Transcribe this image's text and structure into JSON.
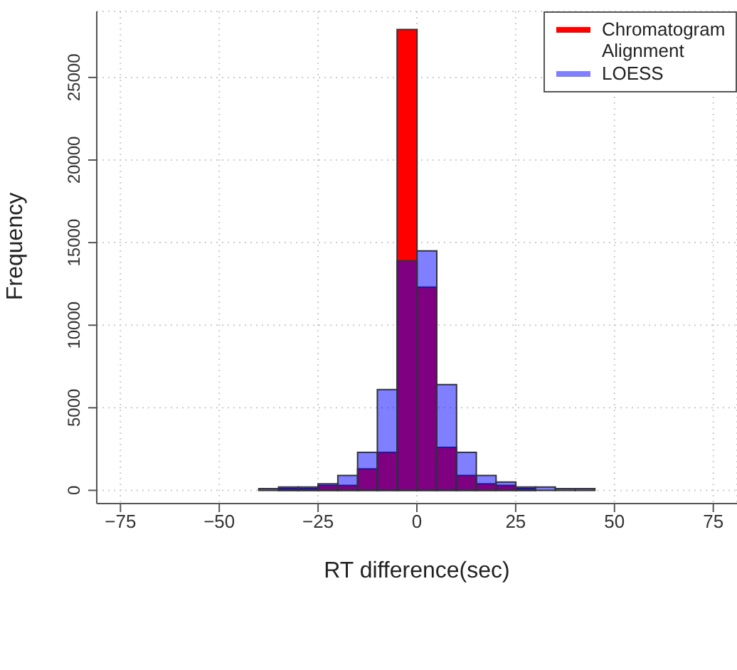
{
  "chart_data": {
    "type": "histogram",
    "xlabel": "RT difference(sec)",
    "ylabel": "Frequency",
    "bins": [
      -80,
      -75,
      -70,
      -65,
      -60,
      -55,
      -50,
      -45,
      -40,
      -35,
      -30,
      -25,
      -20,
      -15,
      -10,
      -5,
      0,
      5,
      10,
      15,
      20,
      25,
      30,
      35,
      40,
      45,
      50,
      55,
      60,
      65,
      70,
      75,
      80
    ],
    "series": [
      {
        "name": "Chromatogram Alignment",
        "color": "#ff0000",
        "values": [
          0,
          0,
          0,
          0,
          0,
          0,
          0,
          0,
          0,
          100,
          100,
          300,
          300,
          1300,
          2300,
          27900,
          12300,
          2600,
          900,
          400,
          300,
          100,
          0,
          0,
          0,
          0,
          0,
          0,
          0,
          0,
          0,
          0
        ]
      },
      {
        "name": "LOESS",
        "color": "#7f7fff",
        "values": [
          0,
          0,
          0,
          0,
          0,
          0,
          0,
          0,
          100,
          200,
          200,
          400,
          900,
          2300,
          6100,
          13900,
          14500,
          6400,
          2300,
          900,
          500,
          200,
          200,
          100,
          100,
          0,
          0,
          0,
          0,
          0,
          0,
          0
        ]
      }
    ],
    "xlim": [
      -81,
      81
    ],
    "xticks": [
      {
        "value": -75,
        "label": "−75"
      },
      {
        "value": -50,
        "label": "−50"
      },
      {
        "value": -25,
        "label": "−25"
      },
      0,
      25,
      50,
      75
    ],
    "ylim": [
      -800,
      29000
    ],
    "yticks": [
      0,
      5000,
      10000,
      15000,
      20000,
      25000
    ],
    "grid": true,
    "legend": "top right"
  }
}
